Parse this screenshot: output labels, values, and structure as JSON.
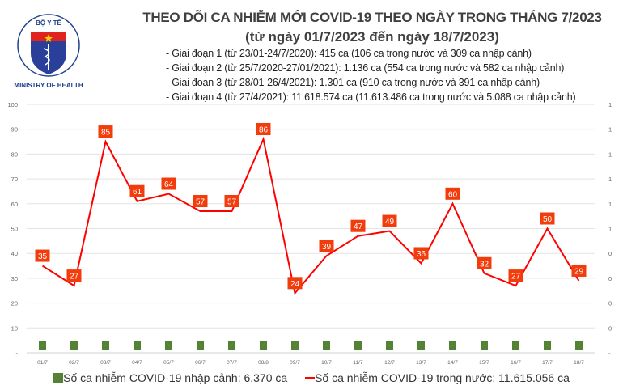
{
  "logo": {
    "text_top": "BỘ Y TẾ",
    "text_bottom": "MINISTRY OF HEALTH"
  },
  "header": {
    "title": "THEO DÕI CA NHIỄM MỚI COVID-19 THEO NGÀY TRONG THÁNG 7/2023",
    "subtitle": "(từ ngày 01/7/2023 đến ngày 18/7/2023)",
    "notes": [
      "- Giai đoạn 1 (từ 23/01-24/7/2020): 415 ca (106 ca trong nước và 309 ca nhập cảnh)",
      "- Giai đoạn 2 (từ 25/7/2020-27/01/2021): 1.136 ca (554 ca trong nước và 582 ca nhập cảnh)",
      "- Giai đoạn 3 (từ 28/01-26/4/2021): 1.301 ca (910 ca trong nước và 391 ca nhập cảnh)",
      "- Giai đoạn 4 (từ 27/4/2021): 11.618.574 ca (11.613.486 ca trong nước và 5.088 ca nhập cảnh)"
    ]
  },
  "chart_data": {
    "type": "bar+line",
    "categories": [
      "01/7",
      "02/7",
      "03/7",
      "04/7",
      "05/7",
      "06/7",
      "07/7",
      "08/8",
      "09/7",
      "10/7",
      "11/7",
      "12/7",
      "13/7",
      "14/7",
      "15/7",
      "16/7",
      "17/7",
      "18/7"
    ],
    "series": [
      {
        "name": "Số ca nhiễm COVID-19 nhập cảnh: 6.370 ca",
        "type": "bar",
        "axis": "right",
        "values": [
          0,
          0,
          0,
          0,
          0,
          0,
          0,
          0,
          0,
          0,
          0,
          0,
          0,
          0,
          0,
          0,
          0,
          0
        ],
        "data_labels": "-",
        "color": "#548235"
      },
      {
        "name": "Số ca nhiễm COVID-19 trong nước: 11.615.056 ca",
        "type": "line",
        "axis": "left",
        "values": [
          35,
          27,
          85,
          61,
          64,
          57,
          57,
          86,
          24,
          39,
          47,
          49,
          36,
          60,
          32,
          27,
          50,
          29
        ],
        "color": "#ff0000",
        "label_color": "#f23c0c"
      }
    ],
    "y_left": {
      "ylim": [
        0,
        100
      ],
      "ticks": [
        "-",
        "10",
        "20",
        "30",
        "40",
        "50",
        "60",
        "70",
        "80",
        "90",
        "100"
      ]
    },
    "y_right": {
      "ticks": [
        "-",
        "0",
        "0",
        "0",
        "0",
        "1",
        "1",
        "1",
        "1",
        "1",
        "1"
      ]
    },
    "grid": true,
    "legend": "bottom"
  }
}
